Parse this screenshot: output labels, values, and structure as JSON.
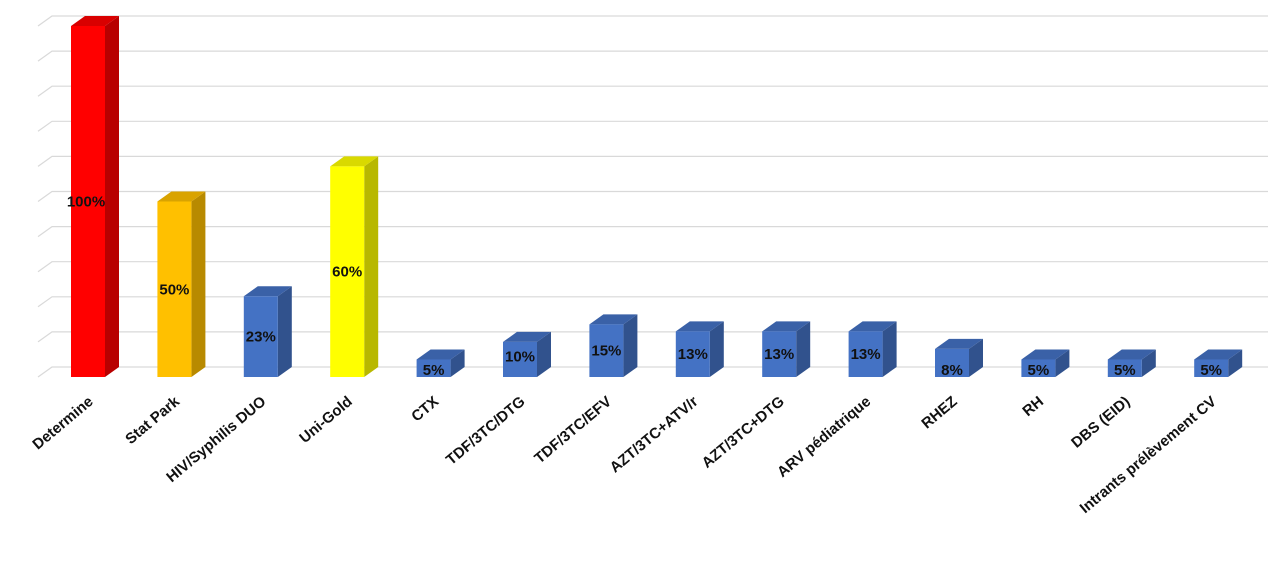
{
  "chart_data": {
    "type": "bar",
    "title": "",
    "xlabel": "",
    "ylabel": "",
    "ylim": [
      0,
      100
    ],
    "grid": true,
    "three_d": true,
    "categories": [
      "Determine",
      "Stat Park",
      "HIV/Syphilis DUO",
      "Uni-Gold",
      "CTX",
      "TDF/3TC/DTG",
      "TDF/3TC/EFV",
      "AZT/3TC+ATV/r",
      "AZT/3TC+DTG",
      "ARV pédiatrique",
      "RHEZ",
      "RH",
      "DBS (EID)",
      "Intrants prélèvement CV"
    ],
    "values": [
      100,
      50,
      23,
      60,
      5,
      10,
      15,
      13,
      13,
      13,
      8,
      5,
      5,
      5
    ],
    "value_labels": [
      "100%",
      "50%",
      "23%",
      "60%",
      "5%",
      "10%",
      "15%",
      "13%",
      "13%",
      "13%",
      "8%",
      "5%",
      "5%",
      "5%"
    ],
    "colors": [
      "#ff0000",
      "#ffc000",
      "#4472c4",
      "#ffff00",
      "#4472c4",
      "#4472c4",
      "#4472c4",
      "#4472c4",
      "#4472c4",
      "#4472c4",
      "#4472c4",
      "#4472c4",
      "#4472c4",
      "#4472c4"
    ]
  }
}
